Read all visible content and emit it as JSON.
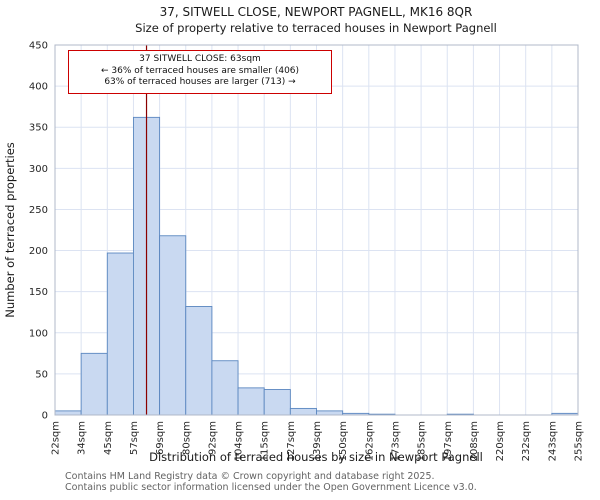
{
  "chart_data": {
    "type": "bar",
    "title": "37, SITWELL CLOSE, NEWPORT PAGNELL, MK16 8QR",
    "subtitle": "Size of property relative to terraced houses in Newport Pagnell",
    "xlabel": "Distribution of terraced houses by size in Newport Pagnell",
    "ylabel": "Number of terraced properties",
    "ylim": [
      0,
      450
    ],
    "ytick_step": 50,
    "grid": true,
    "bin_edges": [
      22,
      34,
      45,
      57,
      69,
      80,
      92,
      104,
      115,
      127,
      139,
      150,
      162,
      173,
      185,
      197,
      208,
      220,
      232,
      243,
      255
    ],
    "bin_labels": [
      "22sqm",
      "34sqm",
      "45sqm",
      "57sqm",
      "69sqm",
      "80sqm",
      "92sqm",
      "104sqm",
      "115sqm",
      "127sqm",
      "139sqm",
      "150sqm",
      "162sqm",
      "173sqm",
      "185sqm",
      "197sqm",
      "208sqm",
      "220sqm",
      "232sqm",
      "243sqm",
      "255sqm"
    ],
    "values": [
      5,
      75,
      197,
      362,
      218,
      132,
      66,
      33,
      31,
      8,
      5,
      2,
      1,
      0,
      0,
      1,
      0,
      0,
      0,
      2
    ],
    "marker_value": 63,
    "colors": {
      "bar_fill": "#c9d9f1",
      "bar_edge": "#5b87c0",
      "marker_line": "#8b0000",
      "grid": "#dce3f2",
      "frame": "#b0b8c8",
      "annotation_border": "#cc0000"
    }
  },
  "annotation": {
    "line1": "37 SITWELL CLOSE: 63sqm",
    "line2": "← 36% of terraced houses are smaller (406)",
    "line3": "63% of terraced houses are larger (713) →"
  },
  "footer": {
    "line1": "Contains HM Land Registry data © Crown copyright and database right 2025.",
    "line2": "Contains public sector information licensed under the Open Government Licence v3.0."
  }
}
